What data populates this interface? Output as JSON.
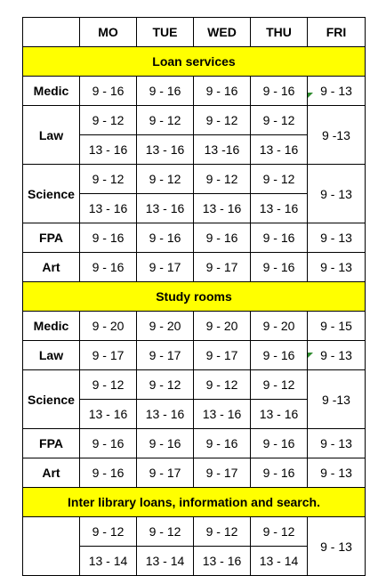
{
  "headers": [
    "",
    "MO",
    "TUE",
    "WED",
    "THU",
    "FRI"
  ],
  "sections": [
    {
      "title": "Loan services",
      "rows": [
        {
          "label": "Medic",
          "lines": [
            [
              "9 - 16",
              "9 - 16",
              "9 - 16",
              "9 - 16"
            ]
          ],
          "fri": "9 - 13"
        },
        {
          "label": "Law",
          "lines": [
            [
              "9 - 12",
              "9 - 12",
              "9 - 12",
              "9 - 12"
            ],
            [
              "13 - 16",
              "13 - 16",
              "13 -16",
              "13 - 16"
            ]
          ],
          "fri": "9 -13"
        },
        {
          "label": "Science",
          "lines": [
            [
              "9 - 12",
              "9 - 12",
              "9 - 12",
              "9 - 12"
            ],
            [
              "13 - 16",
              "13 - 16",
              "13 - 16",
              "13 - 16"
            ]
          ],
          "fri": "9 - 13"
        },
        {
          "label": "FPA",
          "lines": [
            [
              "9 - 16",
              "9 - 16",
              "9 - 16",
              "9 - 16"
            ]
          ],
          "fri": "9 - 13"
        },
        {
          "label": "Art",
          "lines": [
            [
              "9 - 16",
              "9 - 17",
              "9 - 17",
              "9 - 16"
            ]
          ],
          "fri": "9 - 13"
        }
      ]
    },
    {
      "title": "Study rooms",
      "rows": [
        {
          "label": "Medic",
          "lines": [
            [
              "9 - 20",
              "9 - 20",
              "9 - 20",
              "9 - 20"
            ]
          ],
          "fri": "9 - 15"
        },
        {
          "label": "Law",
          "lines": [
            [
              "9 - 17",
              "9 - 17",
              "9 - 17",
              "9 - 16"
            ]
          ],
          "fri": "9 - 13"
        },
        {
          "label": "Science",
          "lines": [
            [
              "9 - 12",
              "9 - 12",
              "9 - 12",
              "9 - 12"
            ],
            [
              "13 - 16",
              "13 - 16",
              "13 - 16",
              "13 - 16"
            ]
          ],
          "fri": "9 -13"
        },
        {
          "label": "FPA",
          "lines": [
            [
              "9 - 16",
              "9 - 16",
              "9 - 16",
              "9 - 16"
            ]
          ],
          "fri": "9 - 13"
        },
        {
          "label": "Art",
          "lines": [
            [
              "9 - 16",
              "9 - 17",
              "9 - 17",
              "9 - 16"
            ]
          ],
          "fri": "9 - 13"
        }
      ]
    },
    {
      "title": "Inter library loans, information and search.",
      "rows": [
        {
          "label": "",
          "lines": [
            [
              "9 - 12",
              "9 - 12",
              "9 - 12",
              "9 - 12"
            ],
            [
              "13 - 14",
              "13 - 14",
              "13 - 16",
              "13 - 14"
            ]
          ],
          "fri": "9 - 13"
        }
      ]
    }
  ]
}
